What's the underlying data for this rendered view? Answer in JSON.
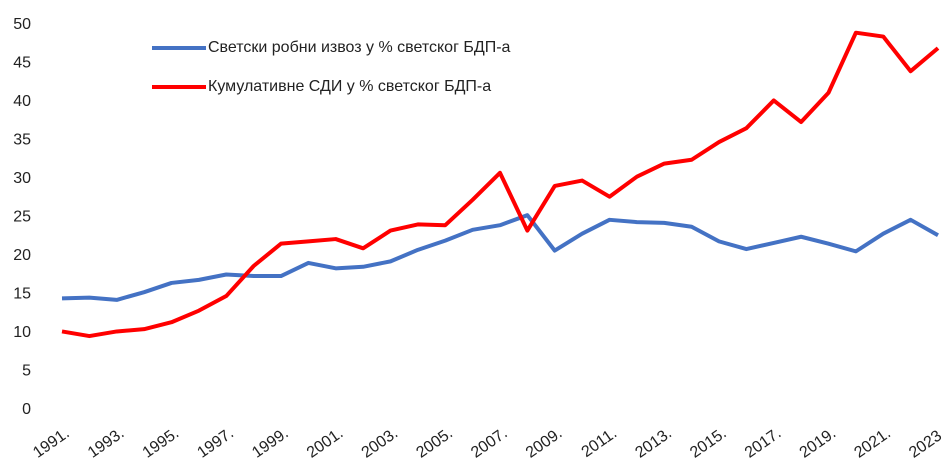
{
  "chart_data": {
    "type": "line",
    "categories": [
      "1991.",
      null,
      "1993.",
      null,
      "1995.",
      null,
      "1997.",
      null,
      "1999.",
      null,
      "2001.",
      null,
      "2003.",
      null,
      "2005.",
      null,
      "2007.",
      null,
      "2009.",
      null,
      "2011.",
      null,
      "2013.",
      null,
      "2015.",
      null,
      "2017.",
      null,
      "2019.",
      null,
      "2021.",
      null,
      "2023."
    ],
    "series": [
      {
        "name": "Светски робни извоз у % светског БДП-а",
        "color": "#4472c4",
        "values": [
          14.5,
          14.6,
          14.3,
          15.3,
          16.5,
          16.9,
          17.6,
          17.4,
          17.4,
          19.1,
          18.4,
          18.6,
          19.3,
          20.8,
          22.0,
          23.4,
          24.0,
          25.3,
          20.7,
          22.9,
          24.7,
          24.4,
          24.3,
          23.8,
          21.9,
          20.9,
          21.7,
          22.5,
          21.6,
          20.6,
          22.9,
          24.7,
          22.7
        ]
      },
      {
        "name": "Кумулативне СДИ у % светског БДП-а",
        "color": "#ff0000",
        "values": [
          10.2,
          9.6,
          10.2,
          10.5,
          11.4,
          12.9,
          14.8,
          18.7,
          21.6,
          21.9,
          22.2,
          21.0,
          23.3,
          24.1,
          24.0,
          27.3,
          30.8,
          23.3,
          29.1,
          29.8,
          27.7,
          30.3,
          32.0,
          32.5,
          34.8,
          36.6,
          40.2,
          37.4,
          41.2,
          49.0,
          48.5,
          44.0,
          47.0
        ]
      }
    ],
    "ylim": [
      0,
      50
    ],
    "yticks": [
      0,
      5,
      10,
      15,
      20,
      25,
      30,
      35,
      40,
      45,
      50
    ],
    "grid": false
  }
}
